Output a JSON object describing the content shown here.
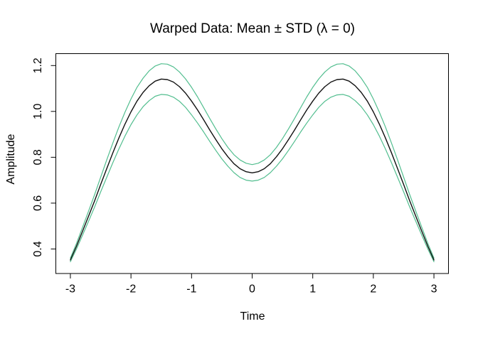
{
  "figure": {
    "background": "#ffffff",
    "text_color": "#000000"
  },
  "chart_data": {
    "type": "line",
    "title": "Warped Data: Mean ± STD (λ = 0)",
    "xlabel": "Time",
    "ylabel": "Amplitude",
    "xlim": [
      -3.24,
      3.24
    ],
    "ylim": [
      0.293,
      1.252
    ],
    "grid": false,
    "legend": "none",
    "frame_color": "#000000",
    "x_ticks": [
      -3,
      -2,
      -1,
      0,
      1,
      2,
      3
    ],
    "x_tick_labels": [
      "-3",
      "-2",
      "-1",
      "0",
      "1",
      "2",
      "3"
    ],
    "y_ticks": [
      0.4,
      0.6,
      0.8,
      1.0,
      1.2
    ],
    "y_tick_labels": [
      "0.4",
      "0.6",
      "0.8",
      "1.0",
      "1.2"
    ],
    "x": [
      -3,
      -2.9,
      -2.8,
      -2.7,
      -2.6,
      -2.5,
      -2.4,
      -2.3,
      -2.2,
      -2.1,
      -2,
      -1.9,
      -1.8,
      -1.7,
      -1.6,
      -1.5,
      -1.4,
      -1.3,
      -1.2,
      -1.1,
      -1,
      -0.9,
      -0.8,
      -0.7,
      -0.6,
      -0.5,
      -0.4,
      -0.3,
      -0.2,
      -0.1,
      0,
      0.1,
      0.2,
      0.3,
      0.4,
      0.5,
      0.6,
      0.7,
      0.8,
      0.9,
      1,
      1.1,
      1.2,
      1.3,
      1.4,
      1.5,
      1.6,
      1.7,
      1.8,
      1.9,
      2,
      2.1,
      2.2,
      2.3,
      2.4,
      2.5,
      2.6,
      2.7,
      2.8,
      2.9,
      3
    ],
    "series": [
      {
        "key": "mean-plus-std",
        "name": "mean + std",
        "color": "#52be8f",
        "values": [
          0.36,
          0.424,
          0.494,
          0.565,
          0.637,
          0.713,
          0.789,
          0.862,
          0.932,
          0.996,
          1.054,
          1.105,
          1.145,
          1.177,
          1.198,
          1.208,
          1.206,
          1.194,
          1.172,
          1.142,
          1.105,
          1.063,
          1.016,
          0.969,
          0.924,
          0.881,
          0.843,
          0.811,
          0.788,
          0.774,
          0.768,
          0.774,
          0.788,
          0.811,
          0.843,
          0.881,
          0.924,
          0.969,
          1.016,
          1.063,
          1.105,
          1.142,
          1.172,
          1.194,
          1.206,
          1.208,
          1.198,
          1.177,
          1.145,
          1.105,
          1.054,
          0.996,
          0.932,
          0.862,
          0.789,
          0.713,
          0.637,
          0.565,
          0.494,
          0.424,
          0.36
        ]
      },
      {
        "key": "mean-minus-std",
        "name": "mean - std",
        "color": "#52be8f",
        "values": [
          0.344,
          0.4,
          0.46,
          0.521,
          0.583,
          0.649,
          0.713,
          0.776,
          0.836,
          0.892,
          0.942,
          0.985,
          1.021,
          1.047,
          1.066,
          1.074,
          1.072,
          1.062,
          1.044,
          1.018,
          0.985,
          0.949,
          0.91,
          0.869,
          0.83,
          0.793,
          0.761,
          0.733,
          0.712,
          0.7,
          0.696,
          0.7,
          0.712,
          0.733,
          0.761,
          0.793,
          0.83,
          0.869,
          0.91,
          0.949,
          0.985,
          1.018,
          1.044,
          1.062,
          1.072,
          1.074,
          1.066,
          1.047,
          1.021,
          0.985,
          0.942,
          0.892,
          0.836,
          0.776,
          0.713,
          0.649,
          0.583,
          0.521,
          0.46,
          0.4,
          0.344
        ]
      },
      {
        "key": "mean",
        "name": "mean",
        "color": "#111111",
        "values": [
          0.352,
          0.412,
          0.477,
          0.543,
          0.61,
          0.681,
          0.751,
          0.819,
          0.884,
          0.944,
          0.998,
          1.045,
          1.083,
          1.112,
          1.132,
          1.141,
          1.139,
          1.128,
          1.108,
          1.08,
          1.045,
          1.006,
          0.963,
          0.919,
          0.877,
          0.837,
          0.802,
          0.772,
          0.75,
          0.737,
          0.732,
          0.737,
          0.75,
          0.772,
          0.802,
          0.837,
          0.877,
          0.919,
          0.963,
          1.006,
          1.045,
          1.08,
          1.108,
          1.128,
          1.139,
          1.141,
          1.132,
          1.112,
          1.083,
          1.045,
          0.998,
          0.944,
          0.884,
          0.819,
          0.751,
          0.681,
          0.61,
          0.543,
          0.477,
          0.412,
          0.352
        ]
      }
    ]
  }
}
